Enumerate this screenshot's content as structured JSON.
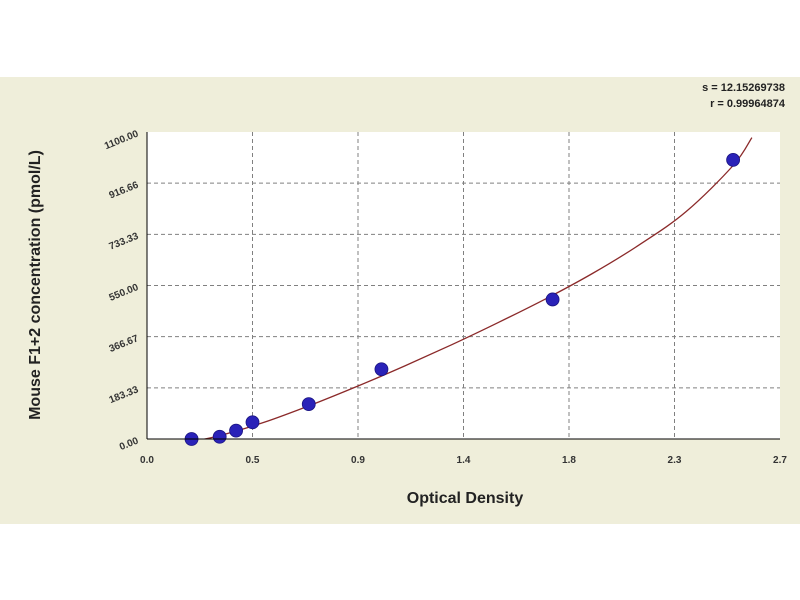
{
  "chart_data": {
    "type": "scatter",
    "xlabel": "Optical Density",
    "ylabel": "Mouse F1+2 concentration (pmol/L)",
    "x_ticks": [
      "0.0",
      "0.5",
      "0.9",
      "1.4",
      "1.8",
      "2.3",
      "2.7"
    ],
    "y_ticks": [
      "0.00",
      "183.33",
      "366.67",
      "550.00",
      "733.33",
      "916.66",
      "1100.00"
    ],
    "xlim": [
      0,
      2.7
    ],
    "ylim": [
      0,
      1100
    ],
    "grid": true,
    "points": {
      "x": [
        0.19,
        0.31,
        0.38,
        0.45,
        0.69,
        1.0,
        1.73,
        2.5
      ],
      "y": [
        0,
        8,
        30,
        60,
        125,
        250,
        500,
        1000
      ]
    },
    "fit_curve": {
      "x": [
        0.15,
        0.3,
        0.5,
        0.7,
        0.9,
        1.1,
        1.3,
        1.5,
        1.7,
        1.9,
        2.1,
        2.3,
        2.5,
        2.58
      ],
      "y": [
        -15,
        10,
        60,
        122,
        190,
        262,
        338,
        418,
        502,
        593,
        696,
        815,
        980,
        1080
      ]
    },
    "stats": {
      "line1": "s = 12.15269738",
      "line2": "r = 0.99964874"
    },
    "colors": {
      "point": "#2a22b8",
      "curve": "#8b2a2a",
      "grid": "#808080",
      "panel": "#efeeda"
    }
  }
}
